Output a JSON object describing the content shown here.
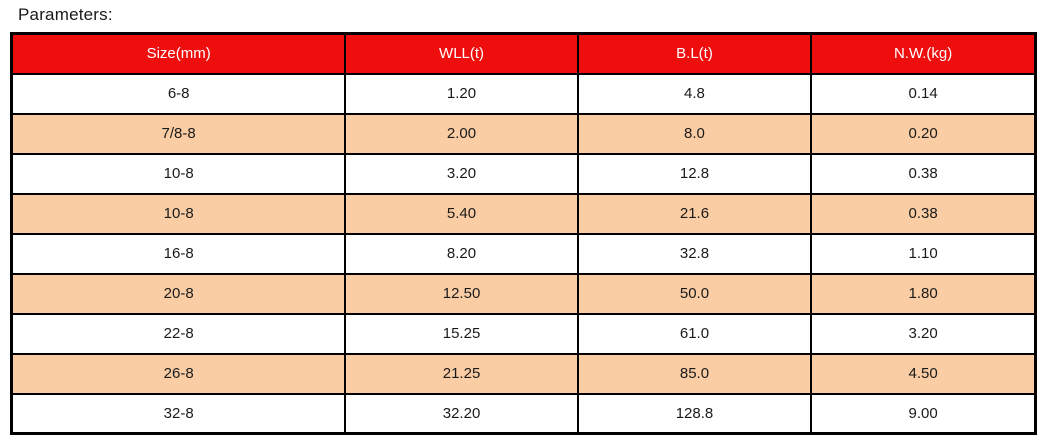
{
  "page": {
    "title": "Parameters:"
  },
  "colors": {
    "header_bg": "#EE0E0E",
    "header_text": "#FFFFFF",
    "row_bg": "#FFFFFF",
    "row_alt_bg": "#FACDA4",
    "border": "#000000",
    "text": "#1A1A1A"
  },
  "chart_data": {
    "type": "table",
    "title": "Parameters:",
    "columns": [
      "Size(mm)",
      "WLL(t)",
      "B.L(t)",
      "N.W.(kg)"
    ],
    "rows": [
      [
        "6-8",
        "1.20",
        "4.8",
        "0.14"
      ],
      [
        "7/8-8",
        "2.00",
        "8.0",
        "0.20"
      ],
      [
        "10-8",
        "3.20",
        "12.8",
        "0.38"
      ],
      [
        "10-8",
        "5.40",
        "21.6",
        "0.38"
      ],
      [
        "16-8",
        "8.20",
        "32.8",
        "1.10"
      ],
      [
        "20-8",
        "12.50",
        "50.0",
        "1.80"
      ],
      [
        "22-8",
        "15.25",
        "61.0",
        "3.20"
      ],
      [
        "26-8",
        "21.25",
        "85.0",
        "4.50"
      ],
      [
        "32-8",
        "32.20",
        "128.8",
        "9.00"
      ]
    ],
    "layout_hints": {
      "header_style": "red background, white text",
      "striping": "white / peach alternating data rows, first data row white",
      "grid": "black ruled borders on all cells"
    }
  }
}
